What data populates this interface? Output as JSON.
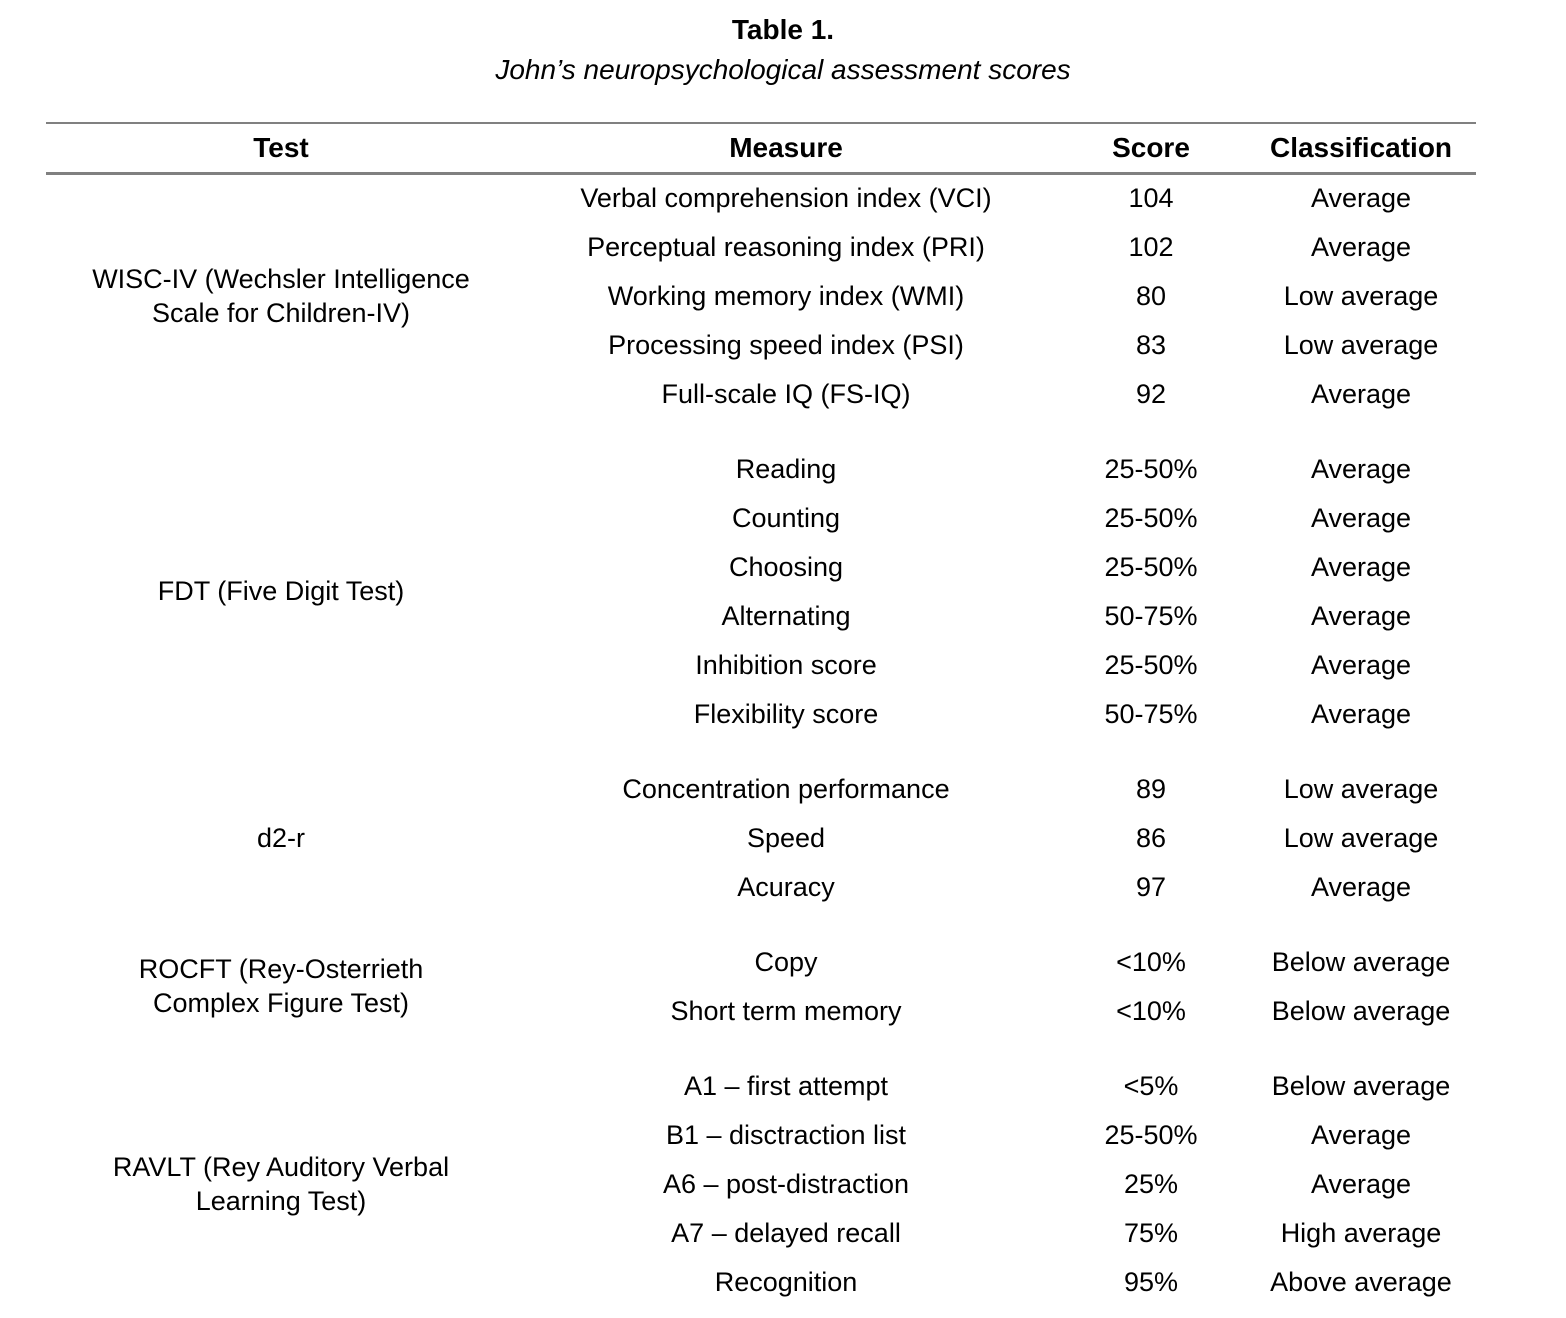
{
  "caption": {
    "number": "Table 1.",
    "title": "John’s neuropsychological assessment scores"
  },
  "columns": {
    "test": "Test",
    "measure": "Measure",
    "score": "Score",
    "classification": "Classification"
  },
  "groups": [
    {
      "test": "WISC-IV (Wechsler Intelligence\nScale for Children-IV)",
      "rows": [
        {
          "measure": "Verbal comprehension index (VCI)",
          "score": "104",
          "classification": "Average"
        },
        {
          "measure": "Perceptual reasoning index (PRI)",
          "score": "102",
          "classification": "Average"
        },
        {
          "measure": "Working memory index (WMI)",
          "score": "80",
          "classification": "Low average"
        },
        {
          "measure": "Processing speed index (PSI)",
          "score": "83",
          "classification": "Low average"
        },
        {
          "measure": "Full-scale IQ (FS-IQ)",
          "score": "92",
          "classification": "Average"
        }
      ]
    },
    {
      "test": "FDT (Five Digit Test)",
      "rows": [
        {
          "measure": "Reading",
          "score": "25-50%",
          "classification": "Average"
        },
        {
          "measure": "Counting",
          "score": "25-50%",
          "classification": "Average"
        },
        {
          "measure": "Choosing",
          "score": "25-50%",
          "classification": "Average"
        },
        {
          "measure": "Alternating",
          "score": "50-75%",
          "classification": "Average"
        },
        {
          "measure": "Inhibition score",
          "score": "25-50%",
          "classification": "Average"
        },
        {
          "measure": "Flexibility score",
          "score": "50-75%",
          "classification": "Average"
        }
      ]
    },
    {
      "test": "d2-r",
      "rows": [
        {
          "measure": "Concentration performance",
          "score": "89",
          "classification": "Low average"
        },
        {
          "measure": "Speed",
          "score": "86",
          "classification": "Low average"
        },
        {
          "measure": "Acuracy",
          "score": "97",
          "classification": "Average"
        }
      ]
    },
    {
      "test": "ROCFT (Rey-Osterrieth\nComplex Figure Test)",
      "rows": [
        {
          "measure": "Copy",
          "score": "<10%",
          "classification": "Below average"
        },
        {
          "measure": "Short term memory",
          "score": "<10%",
          "classification": "Below average"
        }
      ]
    },
    {
      "test": "RAVLT (Rey Auditory Verbal\nLearning Test)",
      "rows": [
        {
          "measure": "A1 – first attempt",
          "score": "<5%",
          "classification": "Below average"
        },
        {
          "measure": "B1 – disctraction list",
          "score": "25-50%",
          "classification": "Average"
        },
        {
          "measure": "A6 – post-distraction",
          "score": "25%",
          "classification": "Average"
        },
        {
          "measure": "A7 – delayed recall",
          "score": "75%",
          "classification": "High average"
        },
        {
          "measure": "Recognition",
          "score": "95%",
          "classification": "Above average"
        }
      ]
    }
  ],
  "rule_color": "#808080"
}
